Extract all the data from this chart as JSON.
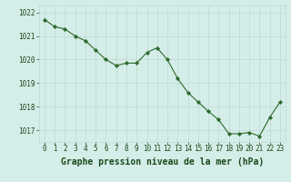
{
  "x": [
    0,
    1,
    2,
    3,
    4,
    5,
    6,
    7,
    8,
    9,
    10,
    11,
    12,
    13,
    14,
    15,
    16,
    17,
    18,
    19,
    20,
    21,
    22,
    23
  ],
  "y": [
    1021.7,
    1021.4,
    1021.3,
    1021.0,
    1020.8,
    1020.4,
    1020.0,
    1019.75,
    1019.85,
    1019.85,
    1020.3,
    1020.5,
    1020.0,
    1019.2,
    1018.6,
    1018.2,
    1017.8,
    1017.45,
    1016.85,
    1016.85,
    1016.9,
    1016.75,
    1017.55,
    1018.2
  ],
  "line_color": "#2d6a2d",
  "marker_color": "#2d6a2d",
  "bg_color": "#d5ede8",
  "grid_color": "#c0d8d0",
  "xlabel": "Graphe pression niveau de la mer (hPa)",
  "xlabel_color": "#1a4a1a",
  "xlim": [
    -0.5,
    23.5
  ],
  "ylim": [
    1016.5,
    1022.3
  ],
  "yticks": [
    1017,
    1018,
    1019,
    1020,
    1021,
    1022
  ],
  "xticks": [
    0,
    1,
    2,
    3,
    4,
    5,
    6,
    7,
    8,
    9,
    10,
    11,
    12,
    13,
    14,
    15,
    16,
    17,
    18,
    19,
    20,
    21,
    22,
    23
  ],
  "tick_color": "#1a4a1a",
  "tick_fontsize": 5.5,
  "xlabel_fontsize": 7,
  "linewidth": 0.8,
  "markersize": 2.2
}
